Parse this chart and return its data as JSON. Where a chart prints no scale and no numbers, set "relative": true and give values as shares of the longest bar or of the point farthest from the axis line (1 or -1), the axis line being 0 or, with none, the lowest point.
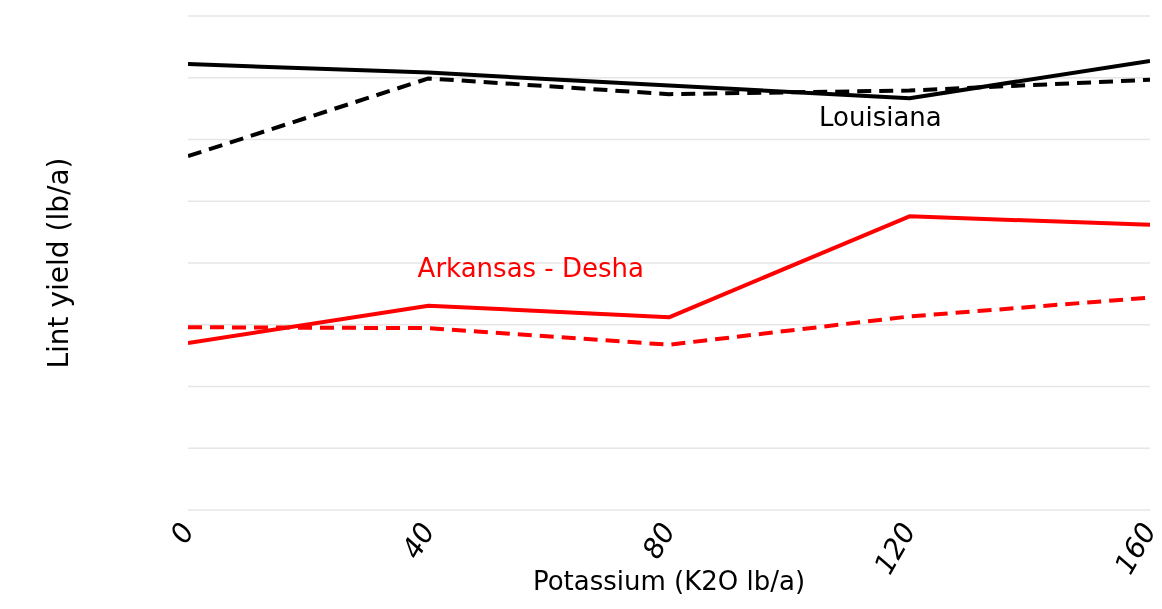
{
  "chart_data": {
    "type": "line",
    "xlabel": "Potassium (K2O lb/a)",
    "ylabel": "Lint yield (lb/a)",
    "relative": true,
    "x": [
      0,
      40,
      80,
      120,
      160
    ],
    "xlim": [
      0,
      160
    ],
    "xticks": [
      0,
      40,
      80,
      120,
      160
    ],
    "series": [
      {
        "name": "Louisiana",
        "color": "#000000",
        "line_style": "solid",
        "values": [
          0.993,
          0.974,
          0.945,
          0.917,
          1
        ]
      },
      {
        "color": "#000000",
        "line_style": "dashed",
        "values": [
          0.788,
          0.961,
          0.926,
          0.934,
          0.958
        ]
      },
      {
        "name": "Arkansas - Desha",
        "color": "#ff0000",
        "line_style": "solid",
        "values": [
          0.372,
          0.455,
          0.429,
          0.654,
          0.635
        ]
      },
      {
        "color": "#ff0000",
        "line_style": "dashed",
        "values": [
          0.407,
          0.405,
          0.368,
          0.431,
          0.473
        ]
      }
    ],
    "grid": "y",
    "legend": false,
    "marker": "none",
    "tick_labels": "x"
  }
}
